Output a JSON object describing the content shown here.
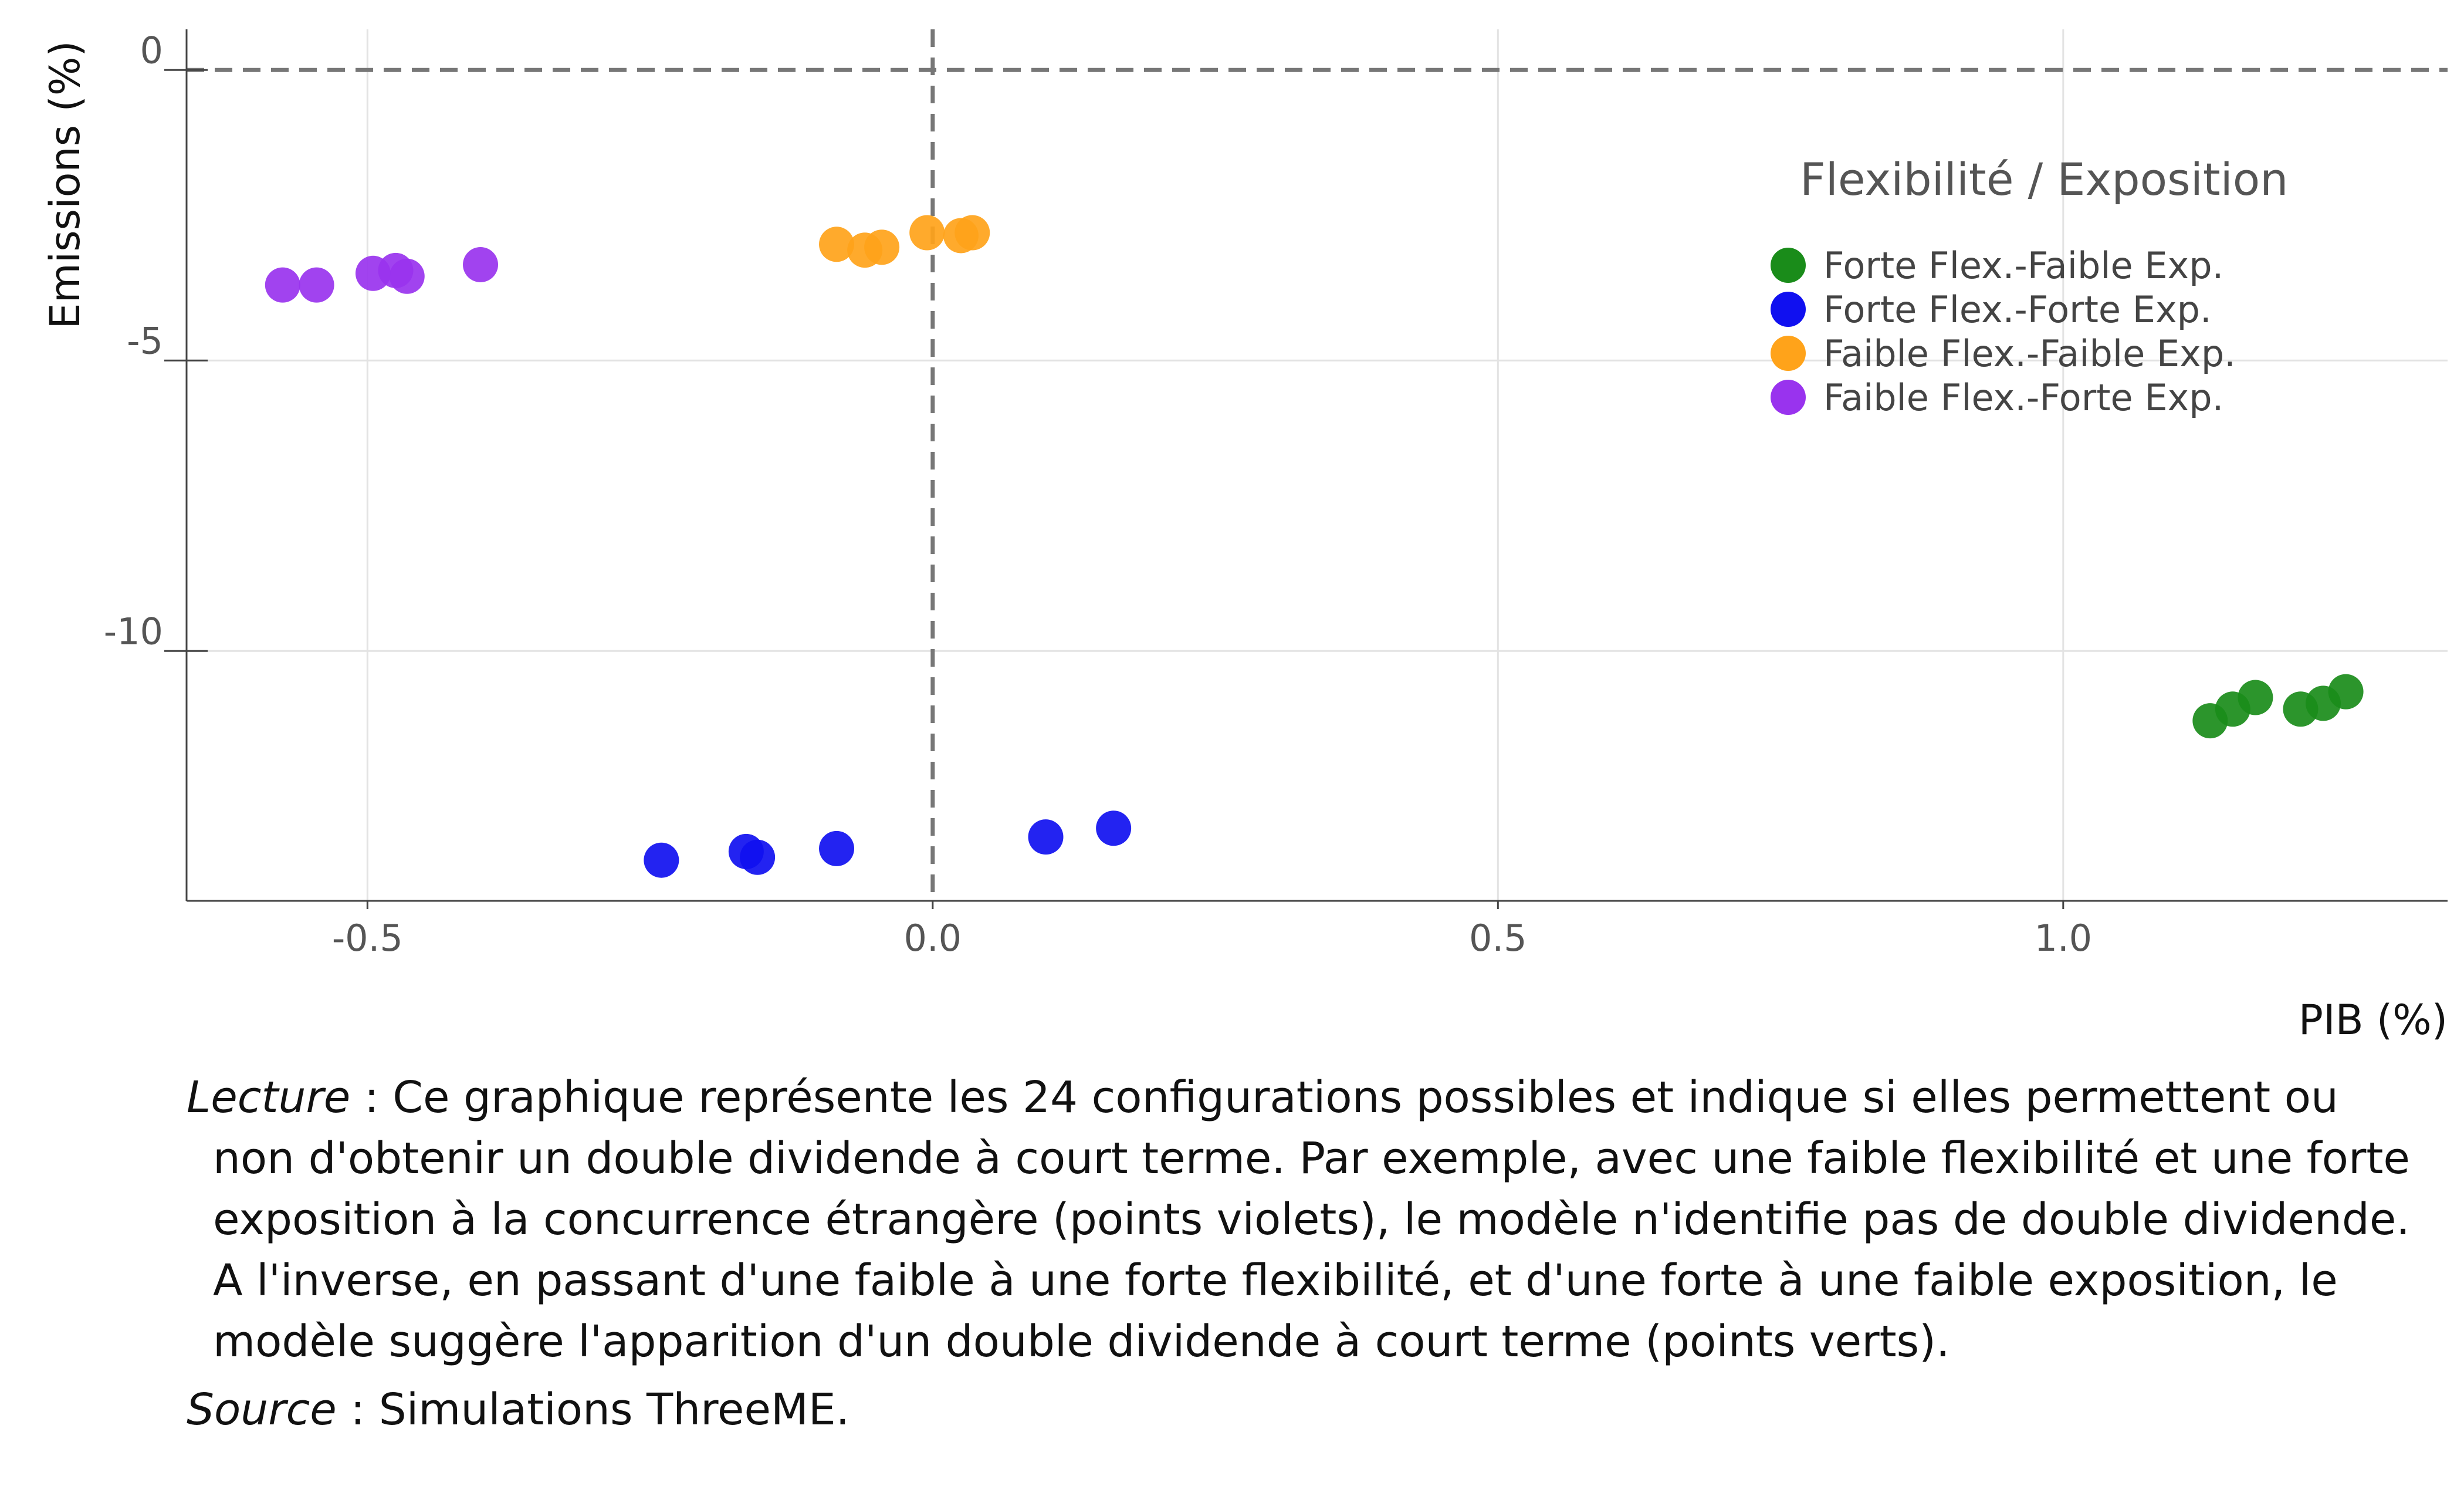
{
  "chart_data": {
    "type": "scatter",
    "xlabel": "PIB (%)",
    "ylabel": "Emissions (%)",
    "xlim": [
      -0.66,
      1.34
    ],
    "ylim": [
      -14.3,
      0.7
    ],
    "x_ticks": [
      -0.5,
      0.0,
      0.5,
      1.0
    ],
    "x_tick_labels": [
      "-0.5",
      "0.0",
      "0.5",
      "1.0"
    ],
    "y_ticks": [
      0,
      -5,
      -10
    ],
    "y_tick_labels": [
      "0",
      "-5",
      "-10"
    ],
    "grid": true,
    "reference_lines": {
      "x": 0,
      "y": 0,
      "style": "dashed"
    },
    "legend_title": "Flexibilité / Exposition",
    "legend_position": "top-right",
    "series": [
      {
        "name": "Forte Flex.-Faible Exp.",
        "color": "#1a8c1a",
        "points": [
          {
            "x": 1.13,
            "y": -11.2
          },
          {
            "x": 1.15,
            "y": -11.0
          },
          {
            "x": 1.17,
            "y": -10.8
          },
          {
            "x": 1.21,
            "y": -11.0
          },
          {
            "x": 1.23,
            "y": -10.9
          },
          {
            "x": 1.25,
            "y": -10.7
          }
        ]
      },
      {
        "name": "Forte Flex.-Forte Exp.",
        "color": "#1010f0",
        "points": [
          {
            "x": -0.24,
            "y": -13.6
          },
          {
            "x": -0.165,
            "y": -13.45
          },
          {
            "x": -0.155,
            "y": -13.55
          },
          {
            "x": -0.085,
            "y": -13.4
          },
          {
            "x": 0.1,
            "y": -13.2
          },
          {
            "x": 0.16,
            "y": -13.05
          }
        ]
      },
      {
        "name": "Faible Flex.-Faible Exp.",
        "color": "#ffa31a",
        "points": [
          {
            "x": -0.085,
            "y": -3.0
          },
          {
            "x": -0.06,
            "y": -3.1
          },
          {
            "x": -0.045,
            "y": -3.05
          },
          {
            "x": -0.005,
            "y": -2.8
          },
          {
            "x": 0.025,
            "y": -2.85
          },
          {
            "x": 0.035,
            "y": -2.8
          }
        ]
      },
      {
        "name": "Faible Flex.-Forte Exp.",
        "color": "#9933ee",
        "points": [
          {
            "x": -0.575,
            "y": -3.7
          },
          {
            "x": -0.545,
            "y": -3.7
          },
          {
            "x": -0.495,
            "y": -3.5
          },
          {
            "x": -0.475,
            "y": -3.45
          },
          {
            "x": -0.465,
            "y": -3.55
          },
          {
            "x": -0.4,
            "y": -3.35
          }
        ]
      }
    ]
  },
  "caption": {
    "lecture_label": "Lecture",
    "lecture_text": " : Ce graphique représente les 24 configurations possibles et indique si elles permettent ou non d'obtenir un double dividende à court terme. Par exemple, avec une faible flexibilité et une forte exposition à la concurrence étrangère (points violets), le modèle n'identifie pas de double dividende. A l'inverse, en passant d'une faible à une forte flexibilité, et d'une forte à une faible exposition, le modèle suggère l'apparition d'un double dividende à court terme (points verts).",
    "source_label": "Source",
    "source_text": " : Simulations ThreeME."
  }
}
